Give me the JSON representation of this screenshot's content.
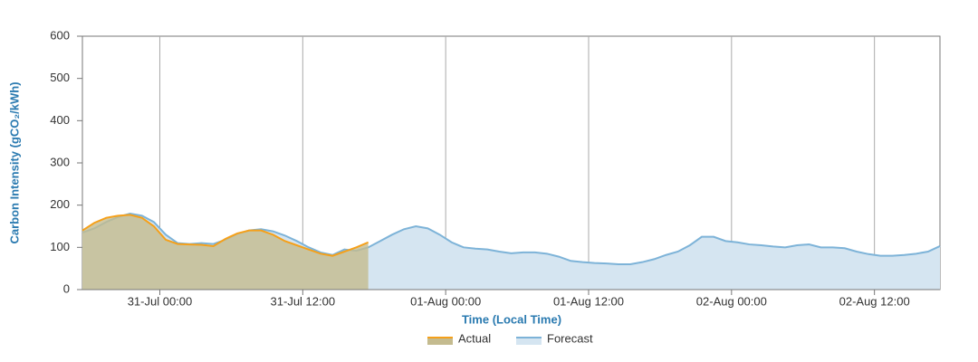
{
  "chart_data": {
    "type": "area",
    "xlabel": "Time (Local Time)",
    "ylabel": "Carbon Intensity (gCO₂/kWh)",
    "xlim": [
      "30-Jul 17:30",
      "02-Aug 17:30"
    ],
    "xticks": [
      "31-Jul 00:00",
      "31-Jul 12:00",
      "01-Aug 00:00",
      "01-Aug 12:00",
      "02-Aug 00:00",
      "02-Aug 12:00"
    ],
    "ylim": [
      0,
      600
    ],
    "yticks": [
      0,
      100,
      200,
      300,
      400,
      500,
      600
    ],
    "grid": true,
    "legend": "bottom",
    "x": [
      "30-Jul 17:30",
      "30-Jul 18:30",
      "30-Jul 19:30",
      "30-Jul 20:30",
      "30-Jul 21:30",
      "30-Jul 22:30",
      "30-Jul 23:30",
      "31-Jul 00:30",
      "31-Jul 01:30",
      "31-Jul 02:30",
      "31-Jul 03:30",
      "31-Jul 04:30",
      "31-Jul 05:30",
      "31-Jul 06:30",
      "31-Jul 07:30",
      "31-Jul 08:30",
      "31-Jul 09:30",
      "31-Jul 10:30",
      "31-Jul 11:30",
      "31-Jul 12:30",
      "31-Jul 13:30",
      "31-Jul 14:30",
      "31-Jul 15:30",
      "31-Jul 16:30",
      "31-Jul 17:30",
      "31-Jul 18:30",
      "31-Jul 19:30",
      "31-Jul 20:30",
      "31-Jul 21:30",
      "31-Jul 22:30",
      "31-Jul 23:30",
      "01-Aug 00:30",
      "01-Aug 01:30",
      "01-Aug 02:30",
      "01-Aug 03:30",
      "01-Aug 04:30",
      "01-Aug 05:30",
      "01-Aug 06:30",
      "01-Aug 07:30",
      "01-Aug 08:30",
      "01-Aug 09:30",
      "01-Aug 10:30",
      "01-Aug 11:30",
      "01-Aug 12:30",
      "01-Aug 13:30",
      "01-Aug 14:30",
      "01-Aug 15:30",
      "01-Aug 16:30",
      "01-Aug 17:30",
      "01-Aug 18:30",
      "01-Aug 19:30",
      "01-Aug 20:30",
      "01-Aug 21:30",
      "01-Aug 22:30",
      "01-Aug 23:30",
      "02-Aug 00:30",
      "02-Aug 01:30",
      "02-Aug 02:30",
      "02-Aug 03:30",
      "02-Aug 04:30",
      "02-Aug 05:30",
      "02-Aug 06:30",
      "02-Aug 07:30",
      "02-Aug 08:30",
      "02-Aug 09:30",
      "02-Aug 10:30",
      "02-Aug 11:30",
      "02-Aug 12:30",
      "02-Aug 13:30",
      "02-Aug 14:30",
      "02-Aug 15:30",
      "02-Aug 16:30",
      "02-Aug 17:30"
    ],
    "series": [
      {
        "name": "Forecast",
        "color": "#7db3d8",
        "fill": "#d5e5f1",
        "values": [
          135,
          145,
          160,
          172,
          180,
          175,
          160,
          130,
          110,
          108,
          110,
          108,
          118,
          132,
          140,
          143,
          138,
          128,
          115,
          100,
          88,
          82,
          95,
          92,
          100,
          115,
          130,
          143,
          150,
          145,
          130,
          112,
          100,
          97,
          95,
          90,
          86,
          88,
          88,
          85,
          78,
          68,
          65,
          63,
          62,
          60,
          60,
          65,
          72,
          82,
          90,
          105,
          125,
          125,
          115,
          112,
          107,
          105,
          102,
          100,
          105,
          107,
          100,
          100,
          98,
          90,
          84,
          80,
          80,
          82,
          85,
          90,
          103
        ]
      },
      {
        "name": "Actual",
        "color": "#f5a01a",
        "fill": "#c4bb8f",
        "values": [
          140,
          158,
          170,
          175,
          177,
          170,
          150,
          118,
          108,
          107,
          106,
          103,
          120,
          133,
          140,
          140,
          130,
          115,
          105,
          95,
          85,
          80,
          90,
          100,
          112,
          null,
          null,
          null,
          null,
          null,
          null,
          null,
          null,
          null,
          null,
          null,
          null,
          null,
          null,
          null,
          null,
          null,
          null,
          null,
          null,
          null,
          null,
          null,
          null,
          null,
          null,
          null,
          null,
          null,
          null,
          null,
          null,
          null,
          null,
          null,
          null,
          null,
          null,
          null,
          null,
          null,
          null,
          null,
          null,
          null,
          null,
          null,
          null
        ]
      }
    ]
  }
}
